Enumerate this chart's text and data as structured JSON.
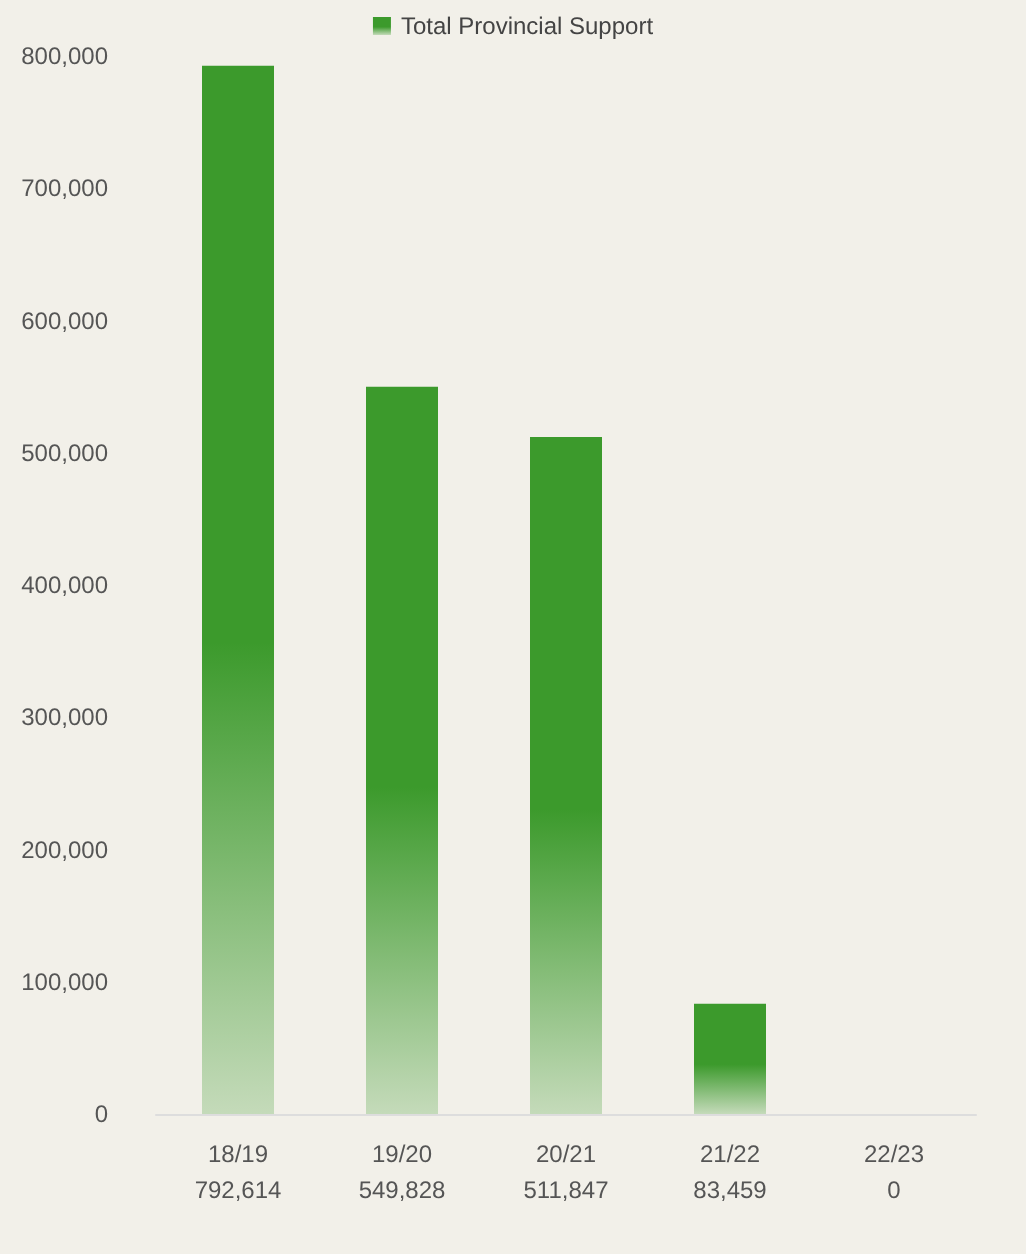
{
  "chart_data": {
    "type": "bar",
    "categories": [
      "18/19",
      "19/20",
      "20/21",
      "21/22",
      "22/23"
    ],
    "series": [
      {
        "name": "Total Provincial Support",
        "color": "#3c9a2c",
        "values": [
          792614,
          549828,
          511847,
          83459,
          0
        ],
        "value_labels": [
          "792,614",
          "549,828",
          "511,847",
          "83,459",
          "0"
        ]
      }
    ],
    "ylim": [
      0,
      800000
    ],
    "yticks": [
      0,
      {
        "value": 100000,
        "label": "100,000"
      },
      {
        "value": 200000,
        "label": "200,000"
      },
      {
        "value": 300000,
        "label": "300,000"
      },
      {
        "value": 400000,
        "label": "400,000"
      },
      {
        "value": 500000,
        "label": "500,000"
      },
      {
        "value": 600000,
        "label": "600,000"
      },
      {
        "value": 700000,
        "label": "700,000"
      },
      {
        "value": 800000,
        "label": "800,000"
      }
    ],
    "grid": false,
    "legend": "top"
  }
}
